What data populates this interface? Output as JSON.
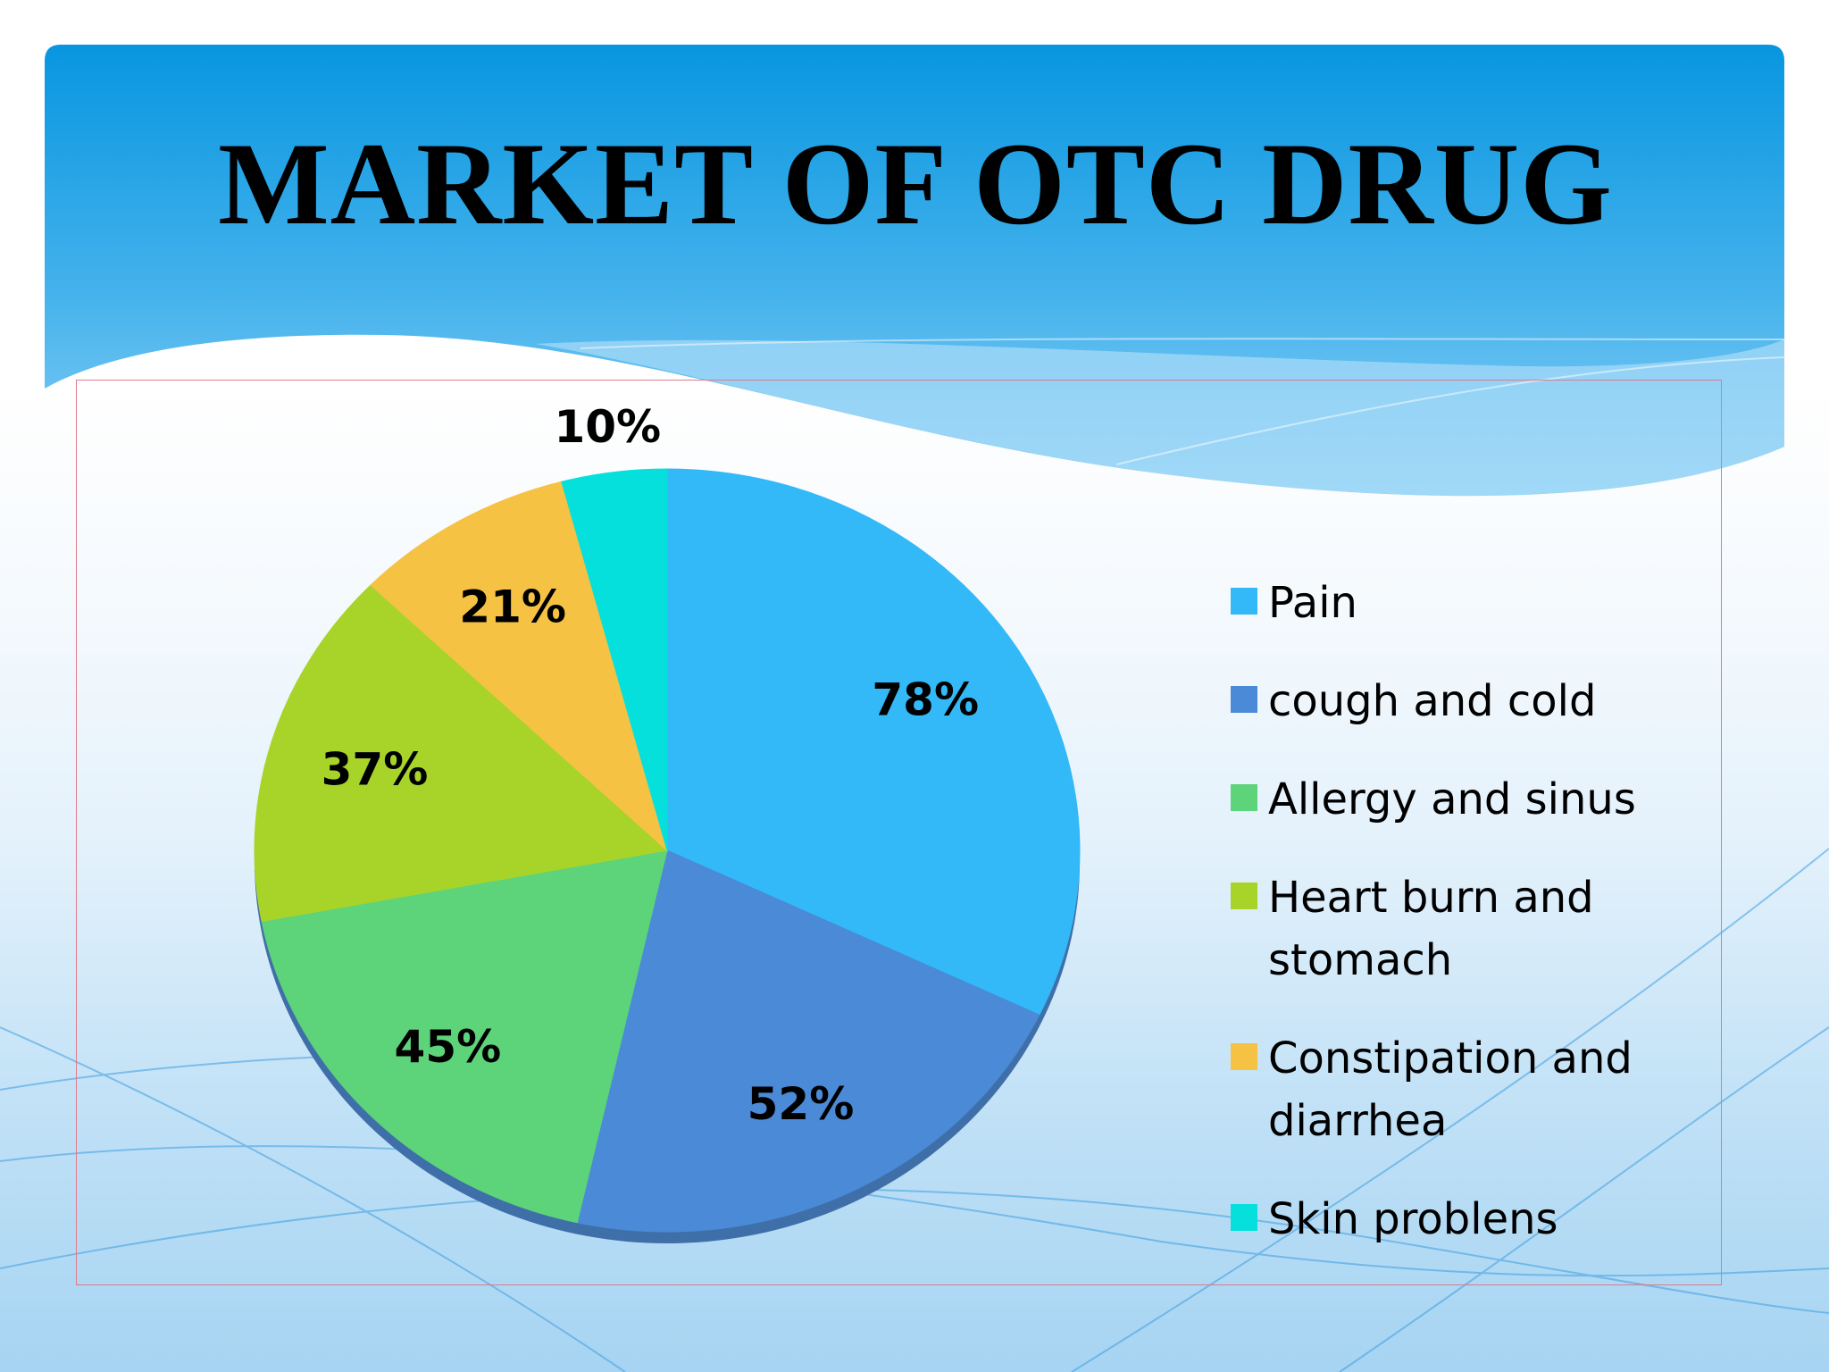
{
  "slide": {
    "title": "MARKET OF OTC DRUG"
  },
  "chart_data": {
    "type": "pie",
    "title": "",
    "categories": [
      "Pain",
      "cough and cold",
      "Allergy and sinus",
      "Heart burn and stomach",
      "Constipation and diarrhea",
      "Skin problens"
    ],
    "values": [
      78,
      52,
      45,
      37,
      21,
      10
    ],
    "labels": [
      "78%",
      "52%",
      "45%",
      "37%",
      "21%",
      "10%"
    ],
    "colors": [
      "#33b8f8",
      "#4a8ad7",
      "#5dd37a",
      "#a8d42a",
      "#f6c243",
      "#06e0dc"
    ],
    "legend_position": "right",
    "start": "top, clockwise"
  }
}
